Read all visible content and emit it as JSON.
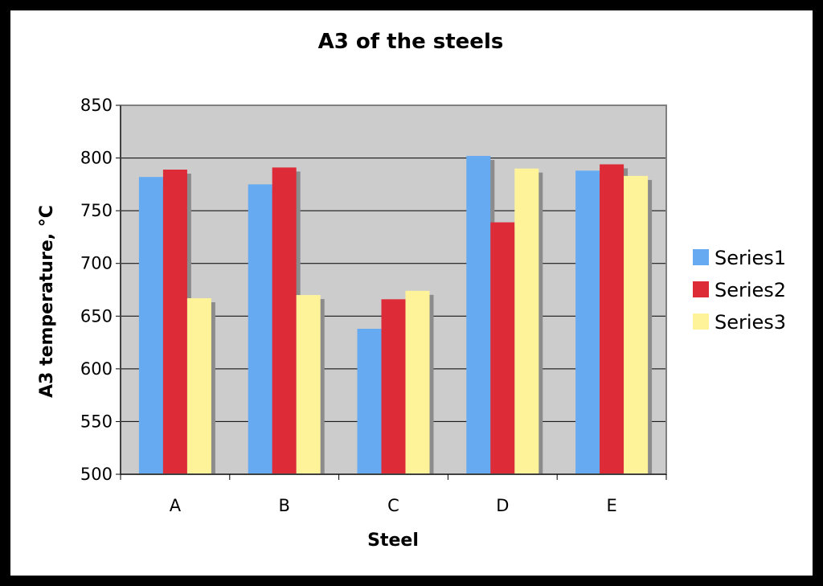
{
  "chart_data": {
    "type": "bar",
    "title": "A3 of the steels",
    "xlabel": "Steel",
    "ylabel": "A3 temperature, °C",
    "categories": [
      "A",
      "B",
      "C",
      "D",
      "E"
    ],
    "series": [
      {
        "name": "Series1",
        "color": "#66aaf2",
        "values": [
          782,
          775,
          638,
          802,
          788
        ]
      },
      {
        "name": "Series2",
        "color": "#dd2b37",
        "values": [
          789,
          791,
          666,
          739,
          794
        ]
      },
      {
        "name": "Series3",
        "color": "#fff39a",
        "values": [
          667,
          670,
          674,
          790,
          783
        ]
      }
    ],
    "ylim": [
      500,
      850
    ],
    "yticks": [
      500,
      550,
      600,
      650,
      700,
      750,
      800,
      850
    ],
    "grid": true,
    "plot_background": "#cccccc",
    "legend_position": "right"
  }
}
